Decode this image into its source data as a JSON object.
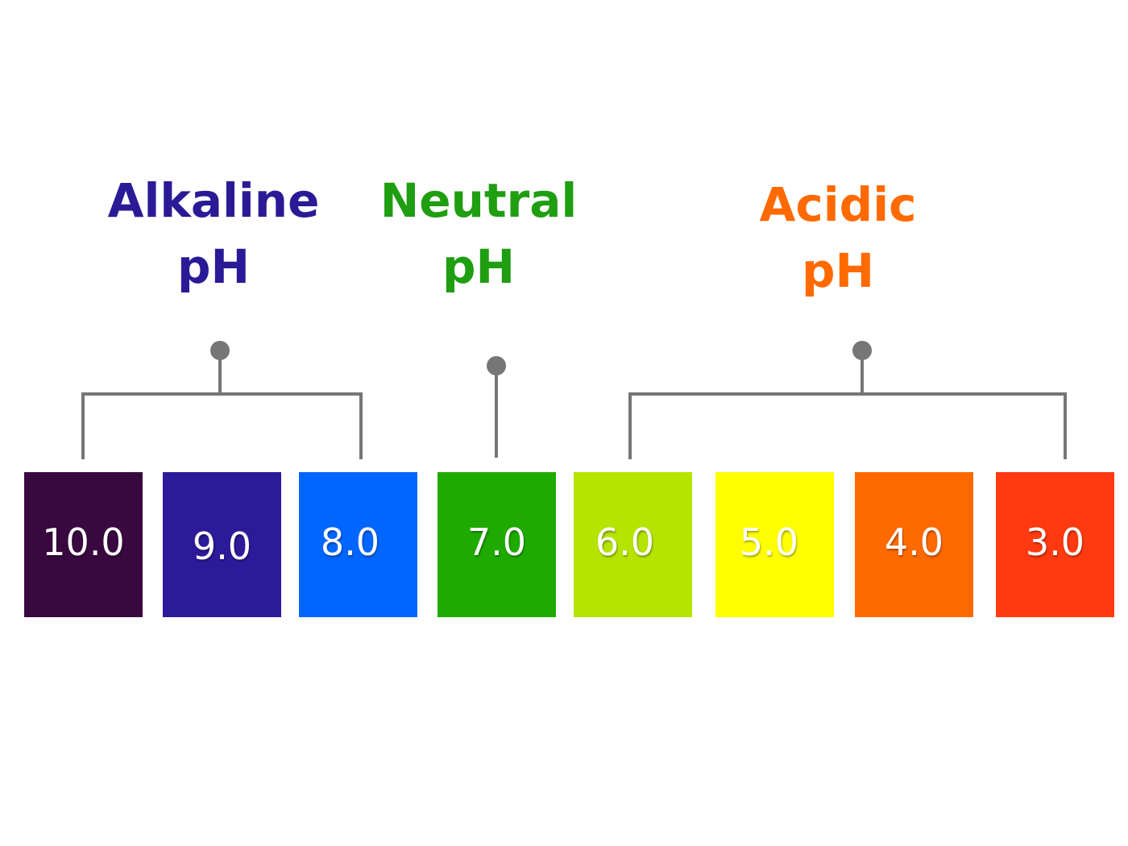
{
  "groups": {
    "alkaline": {
      "line1": "Alkaline",
      "line2": "pH",
      "color": "#2b1a96"
    },
    "neutral": {
      "line1": "Neutral",
      "line2": "pH",
      "color": "#1e9e10"
    },
    "acidic": {
      "line1": "Acidic",
      "line2": "pH",
      "color": "#ff6a00"
    }
  },
  "bracket_color": "#767676",
  "scale": [
    {
      "value": "10.0",
      "color": "#3a0840"
    },
    {
      "value": "9.0",
      "color": "#2c1a99"
    },
    {
      "value": "8.0",
      "color": "#0066ff"
    },
    {
      "value": "7.0",
      "color": "#1faa00"
    },
    {
      "value": "6.0",
      "color": "#b5e400"
    },
    {
      "value": "5.0",
      "color": "#ffff00"
    },
    {
      "value": "4.0",
      "color": "#ff6a00"
    },
    {
      "value": "3.0",
      "color": "#ff3a10"
    }
  ]
}
